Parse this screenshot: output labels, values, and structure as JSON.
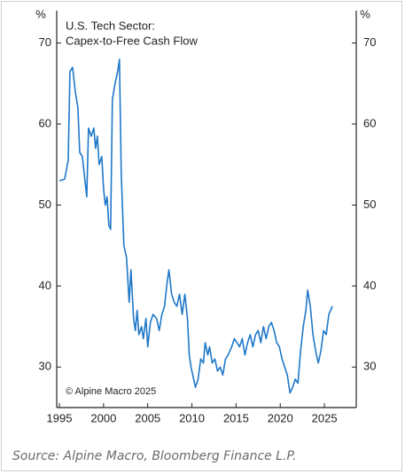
{
  "chart_data": {
    "type": "line",
    "title": [
      "U.S. Tech Sector:",
      "Capex-to-Free Cash Flow"
    ],
    "annotation": "© Alpine Macro 2025",
    "y_unit": "%",
    "y2_unit": "%",
    "source": "Source: Alpine Macro, Bloomberg Finance L.P.",
    "xlim": [
      1994.7,
      2028.6
    ],
    "xticks": [
      1995,
      2000,
      2005,
      2010,
      2015,
      2020,
      2025
    ],
    "ylim": [
      25,
      74
    ],
    "yticks": [
      30,
      40,
      50,
      60,
      70
    ],
    "y2lim": [
      25,
      74
    ],
    "y2ticks": [
      30,
      40,
      50,
      60,
      70
    ],
    "x": [
      1995.0,
      1995.6,
      1996.0,
      1996.2,
      1996.5,
      1996.8,
      1997.1,
      1997.3,
      1997.6,
      1997.9,
      1998.1,
      1998.3,
      1998.6,
      1998.9,
      1999.1,
      1999.3,
      1999.5,
      1999.8,
      2000.0,
      2000.2,
      2000.4,
      2000.6,
      2000.8,
      2001.0,
      2001.3,
      2001.6,
      2001.8,
      2002.0,
      2002.3,
      2002.6,
      2002.9,
      2003.1,
      2003.4,
      2003.6,
      2003.8,
      2004.0,
      2004.3,
      2004.5,
      2004.8,
      2005.0,
      2005.3,
      2005.6,
      2006.0,
      2006.3,
      2006.6,
      2006.9,
      2007.2,
      2007.4,
      2007.7,
      2008.0,
      2008.3,
      2008.6,
      2008.9,
      2009.2,
      2009.5,
      2009.7,
      2009.9,
      2010.1,
      2010.4,
      2010.7,
      2011.0,
      2011.3,
      2011.5,
      2011.8,
      2012.0,
      2012.3,
      2012.6,
      2012.9,
      2013.2,
      2013.5,
      2013.8,
      2014.1,
      2014.5,
      2014.8,
      2015.1,
      2015.4,
      2015.7,
      2016.0,
      2016.3,
      2016.6,
      2016.9,
      2017.2,
      2017.5,
      2017.8,
      2018.1,
      2018.4,
      2018.7,
      2019.0,
      2019.3,
      2019.6,
      2019.9,
      2020.2,
      2020.5,
      2020.8,
      2021.1,
      2021.4,
      2021.7,
      2022.0,
      2022.3,
      2022.6,
      2022.9,
      2023.1,
      2023.4,
      2023.7,
      2024.0,
      2024.3,
      2024.6,
      2024.9,
      2025.2,
      2025.5,
      2025.9
    ],
    "series": [
      {
        "color": "#1f78c8",
        "values": [
          53,
          53.2,
          55.5,
          66.5,
          67,
          64,
          62,
          56.5,
          56,
          53,
          51,
          59.5,
          58.5,
          59.5,
          57,
          58.5,
          55,
          56,
          52,
          50,
          51,
          47.5,
          47,
          63,
          65,
          66.5,
          68,
          54,
          45,
          43.5,
          38,
          42,
          36,
          34.5,
          37,
          34,
          35,
          33.5,
          36,
          32.5,
          35.5,
          36.5,
          36,
          34.5,
          36.5,
          37.5,
          40.5,
          42,
          39,
          38,
          37.5,
          39,
          36.5,
          39,
          36,
          31.5,
          30,
          29,
          27.5,
          28.5,
          31,
          30.5,
          33,
          31.5,
          32.5,
          30.5,
          31,
          29.5,
          30,
          29,
          31,
          31.5,
          32.5,
          33.5,
          33,
          32.5,
          33.5,
          31.5,
          33,
          34,
          32.5,
          34,
          34.5,
          33,
          35,
          33.5,
          35,
          35.5,
          34.5,
          33,
          32.5,
          31,
          30,
          29,
          26.8,
          27.5,
          28.5,
          28,
          32,
          35,
          37,
          39.5,
          37.5,
          34,
          32,
          30.5,
          32,
          34.5,
          34,
          36.5,
          37.5
        ]
      }
    ]
  }
}
